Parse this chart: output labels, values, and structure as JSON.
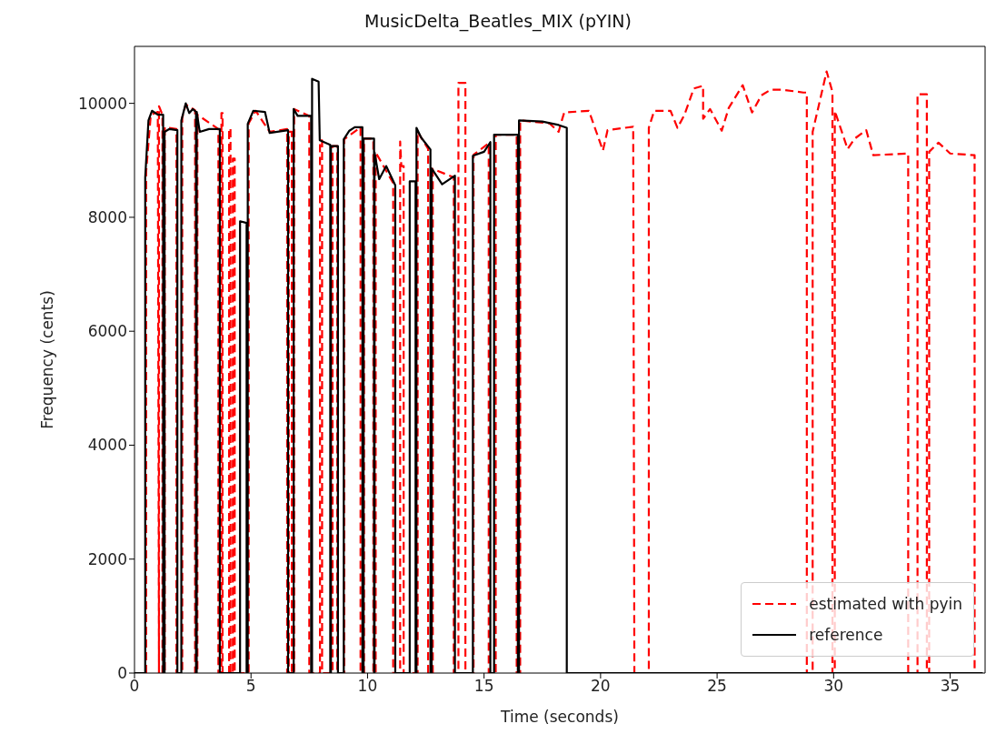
{
  "chart_data": {
    "type": "line",
    "title": "MusicDelta_Beatles_MIX (pYIN)",
    "xlabel": "Time (seconds)",
    "ylabel": "Frequency (cents)",
    "xlim": [
      0,
      36.5
    ],
    "xticks": [
      0,
      5,
      10,
      15,
      20,
      25,
      30,
      35
    ],
    "ylim": [
      0,
      11000
    ],
    "yticks": [
      0,
      2000,
      4000,
      6000,
      8000,
      10000
    ],
    "grid": false,
    "legend": "bottom right",
    "marker": "none",
    "series": [
      {
        "name": "estimated with pyin",
        "color": "#ff0000",
        "line_style": "dashed",
        "x": [
          0.5,
          0.5,
          0.7,
          1.0,
          1.05,
          1.05,
          1.2,
          1.2,
          1.3,
          1.3,
          1.8,
          1.8,
          2.05,
          2.05,
          2.2,
          2.6,
          2.6,
          2.7,
          2.7,
          3.6,
          3.6,
          3.73,
          3.73,
          3.78,
          3.78,
          4.06,
          4.06,
          4.12,
          4.12,
          4.22,
          4.22,
          4.3,
          4.3,
          4.9,
          4.9,
          5.2,
          5.8,
          6.55,
          6.55,
          6.62,
          6.62,
          6.75,
          6.75,
          6.85,
          6.85,
          7.5,
          7.5,
          7.96,
          7.96,
          8.05,
          8.05,
          8.5,
          8.5,
          8.7,
          8.7,
          9.0,
          9.0,
          9.7,
          9.7,
          9.85,
          9.85,
          10.25,
          10.25,
          10.35,
          10.35,
          11.1,
          11.1,
          11.4,
          11.4,
          11.45,
          11.55,
          11.55,
          12.15,
          12.15,
          12.6,
          12.6,
          12.8,
          12.8,
          13.7,
          13.7,
          13.9,
          13.9,
          14.2,
          14.2,
          14.55,
          14.55,
          15.2,
          15.2,
          15.5,
          15.5,
          16.4,
          16.4,
          16.55,
          16.55,
          17.8,
          18.2,
          18.3,
          18.44,
          19.5,
          20.1,
          20.3,
          21.4,
          21.45,
          22.07,
          22.07,
          22.3,
          23.0,
          23.3,
          23.6,
          24.0,
          24.4,
          24.4,
          24.7,
          25.2,
          25.5,
          26.1,
          26.5,
          26.9,
          27.3,
          27.8,
          28.7,
          28.85,
          28.85,
          29.1,
          29.1,
          29.7,
          29.95,
          29.95,
          30.05,
          30.05,
          30.6,
          30.9,
          31.4,
          31.7,
          33.2,
          33.2,
          33.6,
          33.6,
          34.0,
          34.0,
          34.1,
          34.1,
          34.5,
          35.0,
          36.05,
          36.05
        ],
        "values": [
          0,
          8800,
          9800,
          9850,
          0,
          9950,
          9800,
          0,
          0,
          9580,
          9550,
          0,
          0,
          9750,
          9980,
          9880,
          0,
          0,
          9800,
          9550,
          0,
          0,
          9830,
          9830,
          0,
          0,
          9560,
          9560,
          0,
          0,
          9030,
          9030,
          0,
          0,
          9650,
          9870,
          9500,
          9550,
          0,
          0,
          9500,
          9500,
          0,
          0,
          9900,
          9780,
          0,
          0,
          9350,
          9350,
          0,
          0,
          9250,
          9250,
          0,
          0,
          9370,
          9580,
          0,
          0,
          9380,
          9380,
          0,
          0,
          9140,
          8600,
          0,
          0,
          9330,
          8900,
          8900,
          0,
          0,
          9500,
          9200,
          0,
          0,
          8850,
          8700,
          0,
          0,
          10360,
          10360,
          0,
          0,
          9100,
          9300,
          0,
          0,
          9450,
          9450,
          0,
          0,
          9700,
          9650,
          9500,
          9650,
          9840,
          9870,
          9170,
          9530,
          9590,
          0,
          0,
          9570,
          9870,
          9870,
          9570,
          9800,
          10260,
          10310,
          9730,
          9900,
          9520,
          9920,
          10320,
          9840,
          10140,
          10240,
          10240,
          10190,
          10190,
          0,
          0,
          9500,
          10560,
          10200,
          0,
          0,
          9870,
          9200,
          9380,
          9530,
          9090,
          9120,
          0,
          0,
          10160,
          10160,
          0,
          0,
          9150,
          9310,
          9120,
          9090,
          0
        ]
      },
      {
        "name": "reference",
        "color": "#000000",
        "line_style": "solid",
        "x": [
          0,
          0.46,
          0.46,
          0.6,
          0.75,
          1.0,
          1.23,
          1.23,
          1.29,
          1.29,
          1.5,
          1.84,
          1.84,
          2.01,
          2.01,
          2.2,
          2.35,
          2.5,
          2.64,
          2.64,
          2.67,
          2.67,
          2.8,
          3.2,
          3.66,
          3.66,
          4.53,
          4.53,
          4.81,
          4.81,
          4.86,
          4.86,
          5.1,
          5.6,
          5.8,
          6.59,
          6.59,
          6.83,
          6.83,
          7.0,
          7.58,
          7.58,
          7.62,
          7.62,
          7.9,
          7.95,
          8.4,
          8.4,
          8.43,
          8.43,
          8.73,
          8.73,
          8.98,
          8.98,
          9.22,
          9.45,
          9.78,
          9.78,
          9.83,
          9.83,
          10.28,
          10.28,
          10.3,
          10.3,
          10.5,
          10.8,
          11.19,
          11.19,
          11.81,
          11.81,
          12.06,
          12.06,
          12.1,
          12.1,
          12.3,
          12.7,
          12.7,
          12.75,
          12.75,
          13.2,
          13.75,
          13.75,
          14.52,
          14.52,
          15.0,
          15.27,
          15.27,
          15.43,
          15.43,
          16.45,
          16.45,
          16.5,
          16.5,
          17.5,
          18.2,
          18.55,
          18.55,
          36.4
        ],
        "values": [
          0,
          0,
          8700,
          9700,
          9870,
          9800,
          9800,
          0,
          0,
          9500,
          9550,
          9530,
          0,
          0,
          9700,
          10000,
          9830,
          9900,
          9850,
          0,
          0,
          9850,
          9500,
          9550,
          9550,
          0,
          0,
          7930,
          7900,
          0,
          0,
          9640,
          9870,
          9850,
          9480,
          9530,
          0,
          0,
          9900,
          9780,
          9780,
          0,
          0,
          10430,
          10380,
          9350,
          9270,
          0,
          0,
          9250,
          9250,
          0,
          0,
          9370,
          9520,
          9580,
          9580,
          0,
          0,
          9380,
          9380,
          0,
          0,
          9140,
          8670,
          8900,
          8560,
          0,
          0,
          8630,
          8630,
          0,
          0,
          9570,
          9400,
          9190,
          0,
          0,
          8860,
          8580,
          8730,
          0,
          0,
          9080,
          9150,
          9320,
          0,
          0,
          9450,
          9450,
          0,
          0,
          9700,
          9680,
          9620,
          9570,
          0,
          0
        ]
      }
    ]
  }
}
